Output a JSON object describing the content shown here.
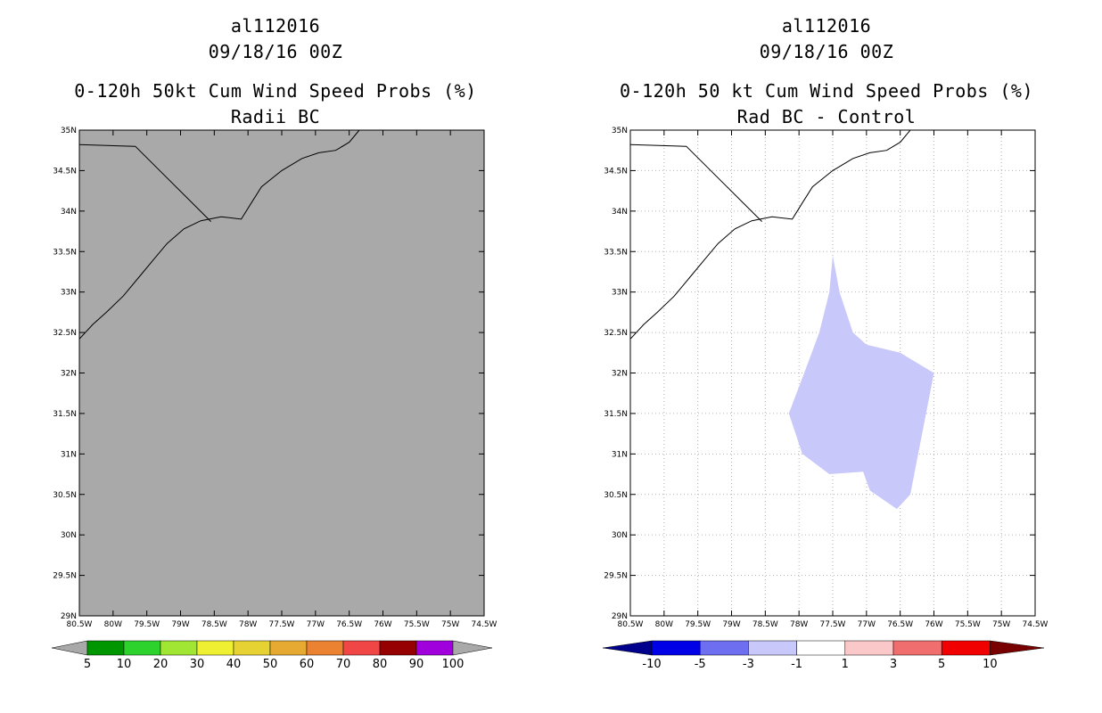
{
  "panels": [
    {
      "id": "left",
      "storm_id": "al112016",
      "datetime": "09/18/16 00Z",
      "title": "0-120h 50kt Cum Wind Speed Probs (%)",
      "subtitle": "Radii BC",
      "colorbar": {
        "labels": [
          "5",
          "10",
          "20",
          "30",
          "40",
          "50",
          "60",
          "70",
          "80",
          "90",
          "100"
        ],
        "colors": [
          "#009600",
          "#2dd22d",
          "#a0e632",
          "#f0f032",
          "#e6d232",
          "#e6aa32",
          "#eb8232",
          "#f04646",
          "#960000",
          "#a000dc"
        ],
        "ends": [
          "#a9a9a9",
          "#a9a9a9"
        ]
      }
    },
    {
      "id": "right",
      "storm_id": "al112016",
      "datetime": "09/18/16 00Z",
      "title": "0-120h 50 kt Cum Wind Speed Probs (%)",
      "subtitle": "Rad BC - Control",
      "colorbar": {
        "labels": [
          "-10",
          "-5",
          "-3",
          "-1",
          "1",
          "3",
          "5",
          "10"
        ],
        "colors": [
          "#0000e6",
          "#6e6ef0",
          "#c8c8fa",
          "#ffffff",
          "#fac8c8",
          "#f06e6e",
          "#f00000"
        ],
        "ends": [
          "#00008c",
          "#780000"
        ]
      }
    }
  ],
  "map": {
    "lon_range": [
      -80.5,
      -74.5
    ],
    "lat_range": [
      29,
      35
    ],
    "lon_labels": [
      "80.5W",
      "80W",
      "79.5W",
      "79W",
      "78.5W",
      "78W",
      "77.5W",
      "77W",
      "76.5W",
      "76W",
      "75.5W",
      "75W",
      "74.5W"
    ],
    "lat_labels": [
      "29N",
      "29.5N",
      "30N",
      "30.5N",
      "31N",
      "31.5N",
      "32N",
      "32.5N",
      "33N",
      "33.5N",
      "34N",
      "34.5N",
      "35N"
    ],
    "left_fill": "#a9a9a9",
    "diff_fill": "#c8c8fa",
    "diff_polygon": [
      [
        -77.5,
        33.45
      ],
      [
        -77.55,
        33.0
      ],
      [
        -77.7,
        32.5
      ],
      [
        -77.9,
        32.05
      ],
      [
        -78.15,
        31.5
      ],
      [
        -77.95,
        31.0
      ],
      [
        -77.55,
        30.75
      ],
      [
        -77.05,
        30.78
      ],
      [
        -76.95,
        30.55
      ],
      [
        -76.55,
        30.32
      ],
      [
        -76.35,
        30.5
      ],
      [
        -76.0,
        32.0
      ],
      [
        -76.5,
        32.25
      ],
      [
        -77.0,
        32.35
      ],
      [
        -77.2,
        32.5
      ],
      [
        -77.4,
        33.0
      ]
    ],
    "coast": [
      [
        -80.5,
        32.42
      ],
      [
        -80.3,
        32.6
      ],
      [
        -80.1,
        32.75
      ],
      [
        -79.85,
        32.95
      ],
      [
        -79.6,
        33.2
      ],
      [
        -79.4,
        33.4
      ],
      [
        -79.2,
        33.6
      ],
      [
        -78.95,
        33.78
      ],
      [
        -78.7,
        33.88
      ],
      [
        -78.4,
        33.93
      ],
      [
        -78.1,
        33.9
      ],
      [
        -77.95,
        34.1
      ],
      [
        -77.8,
        34.3
      ],
      [
        -77.5,
        34.5
      ],
      [
        -77.2,
        34.65
      ],
      [
        -76.95,
        34.72
      ],
      [
        -76.7,
        34.75
      ],
      [
        -76.5,
        34.85
      ],
      [
        -76.35,
        35.0
      ]
    ],
    "borders": [
      [
        [
          -80.5,
          34.82
        ],
        [
          -79.67,
          34.8
        ],
        [
          -78.55,
          33.87
        ]
      ]
    ]
  }
}
